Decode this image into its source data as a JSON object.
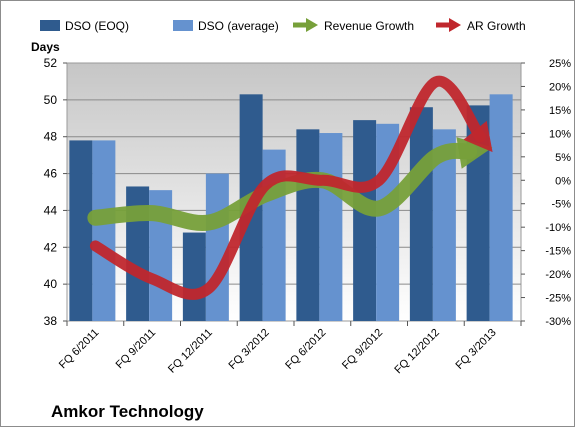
{
  "chart_data": {
    "type": "bar",
    "title": "Amkor Technology",
    "left_axis_label": "Days",
    "categories": [
      "FQ 6/2011",
      "FQ 9/2011",
      "FQ 12/2011",
      "FQ 3/2012",
      "FQ 6/2012",
      "FQ 9/2012",
      "FQ 12/2012",
      "FQ 3/2013"
    ],
    "bar_series": [
      {
        "name": "DSO (EOQ)",
        "color": "#2f5b8e",
        "values": [
          47.8,
          45.3,
          42.8,
          50.3,
          48.4,
          48.9,
          49.6,
          49.7
        ]
      },
      {
        "name": "DSO (average)",
        "color": "#6592cf",
        "values": [
          47.8,
          45.1,
          46.0,
          47.3,
          48.2,
          48.7,
          48.4,
          50.3
        ]
      }
    ],
    "line_series": [
      {
        "name": "Revenue Growth",
        "color": "#77a03a",
        "axis": "right",
        "unit": "%",
        "values": [
          -8,
          -7,
          -9,
          -3,
          0,
          -6,
          5,
          7
        ]
      },
      {
        "name": "AR Growth",
        "color": "#c0272d",
        "axis": "right",
        "unit": "%",
        "values": [
          -14,
          -21,
          -23,
          -1,
          0,
          0,
          21,
          6
        ]
      }
    ],
    "left_axis": {
      "min": 38,
      "max": 52,
      "step": 2,
      "ticks": [
        "38",
        "40",
        "42",
        "44",
        "46",
        "48",
        "50",
        "52"
      ]
    },
    "right_axis": {
      "min": -30,
      "max": 25,
      "step": 5,
      "ticks": [
        "-30%",
        "-25%",
        "-20%",
        "-15%",
        "-10%",
        "-5%",
        "0%",
        "5%",
        "10%",
        "15%",
        "20%",
        "25%"
      ]
    },
    "legend_position": "top",
    "grid": true
  }
}
